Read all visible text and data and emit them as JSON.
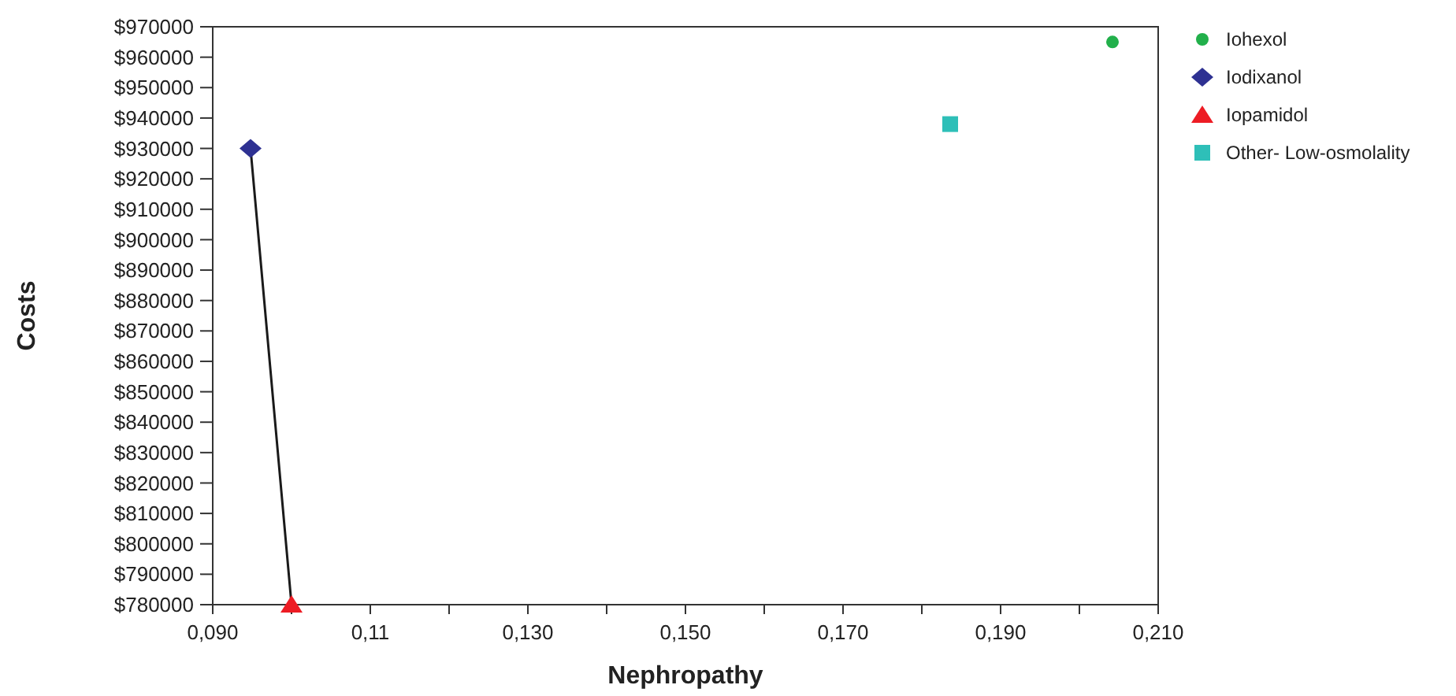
{
  "chart_data": {
    "type": "scatter",
    "xlabel": "Nephropathy",
    "ylabel": "Costs",
    "xlim": [
      0.09,
      0.21
    ],
    "xticks": [
      {
        "value": 0.09,
        "label": "0,090"
      },
      {
        "value": 0.1,
        "label": null
      },
      {
        "value": 0.11,
        "label": "0,11"
      },
      {
        "value": 0.12,
        "label": null
      },
      {
        "value": 0.13,
        "label": "0,130"
      },
      {
        "value": 0.14,
        "label": null
      },
      {
        "value": 0.15,
        "label": "0,150"
      },
      {
        "value": 0.16,
        "label": null
      },
      {
        "value": 0.17,
        "label": "0,170"
      },
      {
        "value": 0.18,
        "label": null
      },
      {
        "value": 0.19,
        "label": "0,190"
      },
      {
        "value": 0.2,
        "label": null
      },
      {
        "value": 0.21,
        "label": "0,210"
      }
    ],
    "ylim": [
      780000,
      970000
    ],
    "yticks": [
      {
        "value": 780000,
        "label": "$780000"
      },
      {
        "value": 790000,
        "label": "$790000"
      },
      {
        "value": 800000,
        "label": "$800000"
      },
      {
        "value": 810000,
        "label": "$810000"
      },
      {
        "value": 820000,
        "label": "$820000"
      },
      {
        "value": 830000,
        "label": "$830000"
      },
      {
        "value": 840000,
        "label": "$840000"
      },
      {
        "value": 850000,
        "label": "$850000"
      },
      {
        "value": 860000,
        "label": "$860000"
      },
      {
        "value": 870000,
        "label": "$870000"
      },
      {
        "value": 880000,
        "label": "$880000"
      },
      {
        "value": 890000,
        "label": "$890000"
      },
      {
        "value": 900000,
        "label": "$900000"
      },
      {
        "value": 910000,
        "label": "$910000"
      },
      {
        "value": 920000,
        "label": "$920000"
      },
      {
        "value": 930000,
        "label": "$930000"
      },
      {
        "value": 940000,
        "label": "$940000"
      },
      {
        "value": 950000,
        "label": "$950000"
      },
      {
        "value": 960000,
        "label": "$960000"
      },
      {
        "value": 970000,
        "label": "$970000"
      }
    ],
    "grid": false,
    "legend": "top right",
    "series": [
      {
        "type": "line",
        "color": "#1a1a1a",
        "x": [
          0.0948,
          0.1
        ],
        "values": [
          930000,
          780000
        ],
        "marker": "none",
        "line_style": "solid"
      },
      {
        "name": "Iohexol",
        "color": "#22b04b",
        "x": [
          0.2042
        ],
        "values": [
          965000
        ],
        "marker": "circle"
      },
      {
        "name": "Iodixanol",
        "color": "#2e3192",
        "x": [
          0.0948
        ],
        "values": [
          930000
        ],
        "marker": "diamond"
      },
      {
        "name": "Iopamidol",
        "color": "#ed1c24",
        "x": [
          0.1
        ],
        "values": [
          780000
        ],
        "marker": "triangle"
      },
      {
        "name": "Other- Low-osmolality",
        "color": "#2ebfb8",
        "x": [
          0.1836
        ],
        "values": [
          938000
        ],
        "marker": "square"
      }
    ]
  }
}
